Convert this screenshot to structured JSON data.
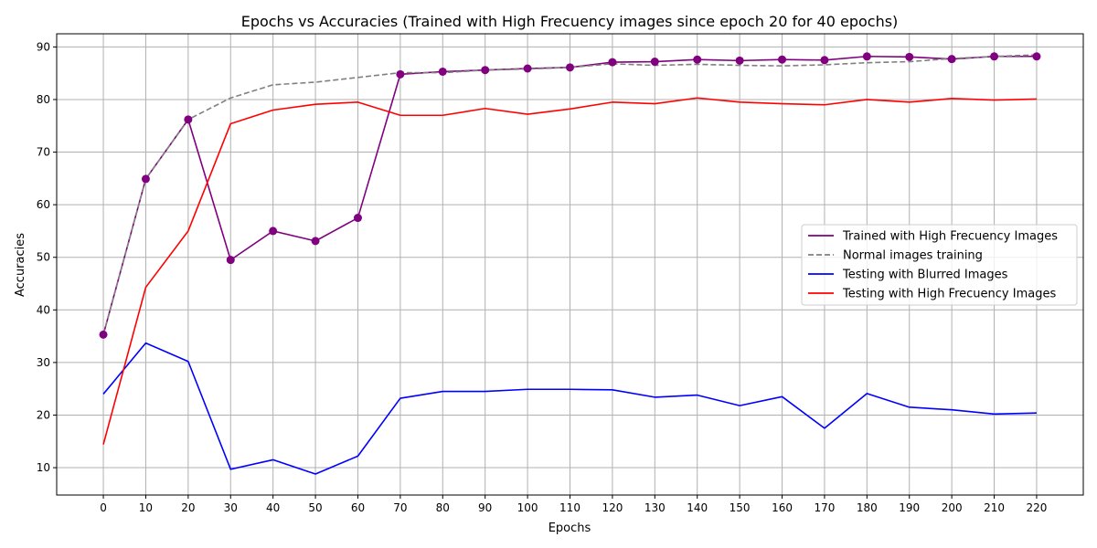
{
  "chart_data": {
    "type": "line",
    "title": "Epochs vs Accuracies (Trained with High Frecuency images since epoch 20 for 40 epochs)",
    "xlabel": "Epochs",
    "ylabel": "Accuracies",
    "xlim": [
      -11,
      231
    ],
    "ylim": [
      4.8,
      92.5
    ],
    "xticks": [
      0,
      10,
      20,
      30,
      40,
      50,
      60,
      70,
      80,
      90,
      100,
      110,
      120,
      130,
      140,
      150,
      160,
      170,
      180,
      190,
      200,
      210,
      220
    ],
    "yticks": [
      10,
      20,
      30,
      40,
      50,
      60,
      70,
      80,
      90
    ],
    "grid": true,
    "legend_position": "center-right",
    "x": [
      0,
      10,
      20,
      30,
      40,
      50,
      60,
      70,
      80,
      90,
      100,
      110,
      120,
      130,
      140,
      150,
      160,
      170,
      180,
      190,
      200,
      210,
      220
    ],
    "series": [
      {
        "name": "Trained with High Frecuency Images",
        "color": "#800080",
        "style": "solid",
        "markers": true,
        "values": [
          35.3,
          64.9,
          76.2,
          49.5,
          55.0,
          53.1,
          57.5,
          84.8,
          85.3,
          85.6,
          85.9,
          86.1,
          87.1,
          87.2,
          87.6,
          87.4,
          87.6,
          87.5,
          88.2,
          88.1,
          87.7,
          88.2,
          88.2
        ]
      },
      {
        "name": "Normal images training",
        "color": "#808080",
        "style": "dashed",
        "markers": false,
        "values": [
          35.3,
          64.9,
          76.2,
          80.3,
          82.8,
          83.3,
          84.2,
          85.1,
          85.1,
          85.6,
          85.8,
          86.1,
          86.8,
          86.5,
          86.7,
          86.5,
          86.4,
          86.6,
          87.0,
          87.2,
          87.8,
          88.2,
          88.5
        ]
      },
      {
        "name": "Testing with Blurred Images",
        "color": "#0000ff",
        "style": "solid",
        "markers": false,
        "values": [
          24.0,
          33.7,
          30.2,
          9.7,
          11.5,
          8.8,
          12.2,
          23.2,
          24.5,
          24.5,
          24.9,
          24.9,
          24.8,
          23.4,
          23.8,
          21.8,
          23.5,
          17.5,
          24.1,
          21.5,
          21.0,
          20.2,
          20.4
        ]
      },
      {
        "name": "Testing with High Frecuency Images",
        "color": "#ff0000",
        "style": "solid",
        "markers": false,
        "values": [
          14.4,
          44.3,
          55.0,
          75.4,
          78.0,
          79.1,
          79.5,
          77.0,
          77.0,
          78.3,
          77.2,
          78.2,
          79.5,
          79.2,
          80.3,
          79.5,
          79.2,
          79.0,
          80.0,
          79.5,
          80.2,
          79.9,
          80.1
        ]
      }
    ]
  }
}
